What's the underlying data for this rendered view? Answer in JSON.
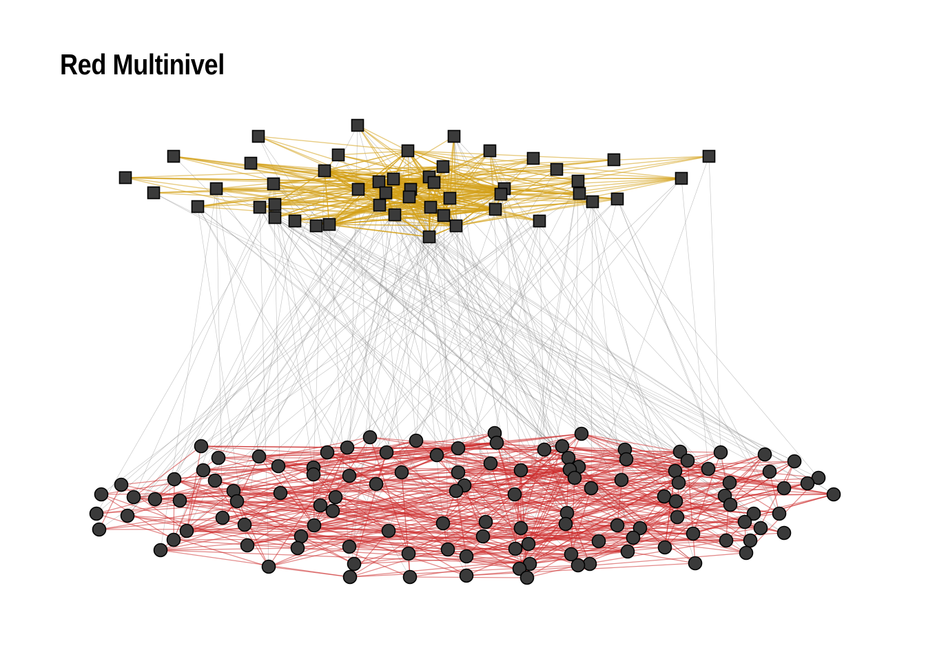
{
  "title": "Red Multinivel",
  "colors": {
    "upper_links": "#d4a017",
    "lower_links": "#cc2a2a",
    "inter_links": "#8a8a8a",
    "node_fill": "#3a3a3a",
    "node_stroke": "#000000"
  },
  "layers": [
    {
      "shape": "square",
      "link_color": "#d4a017"
    },
    {
      "shape": "circle",
      "link_color": "#cc2a2a"
    }
  ]
}
